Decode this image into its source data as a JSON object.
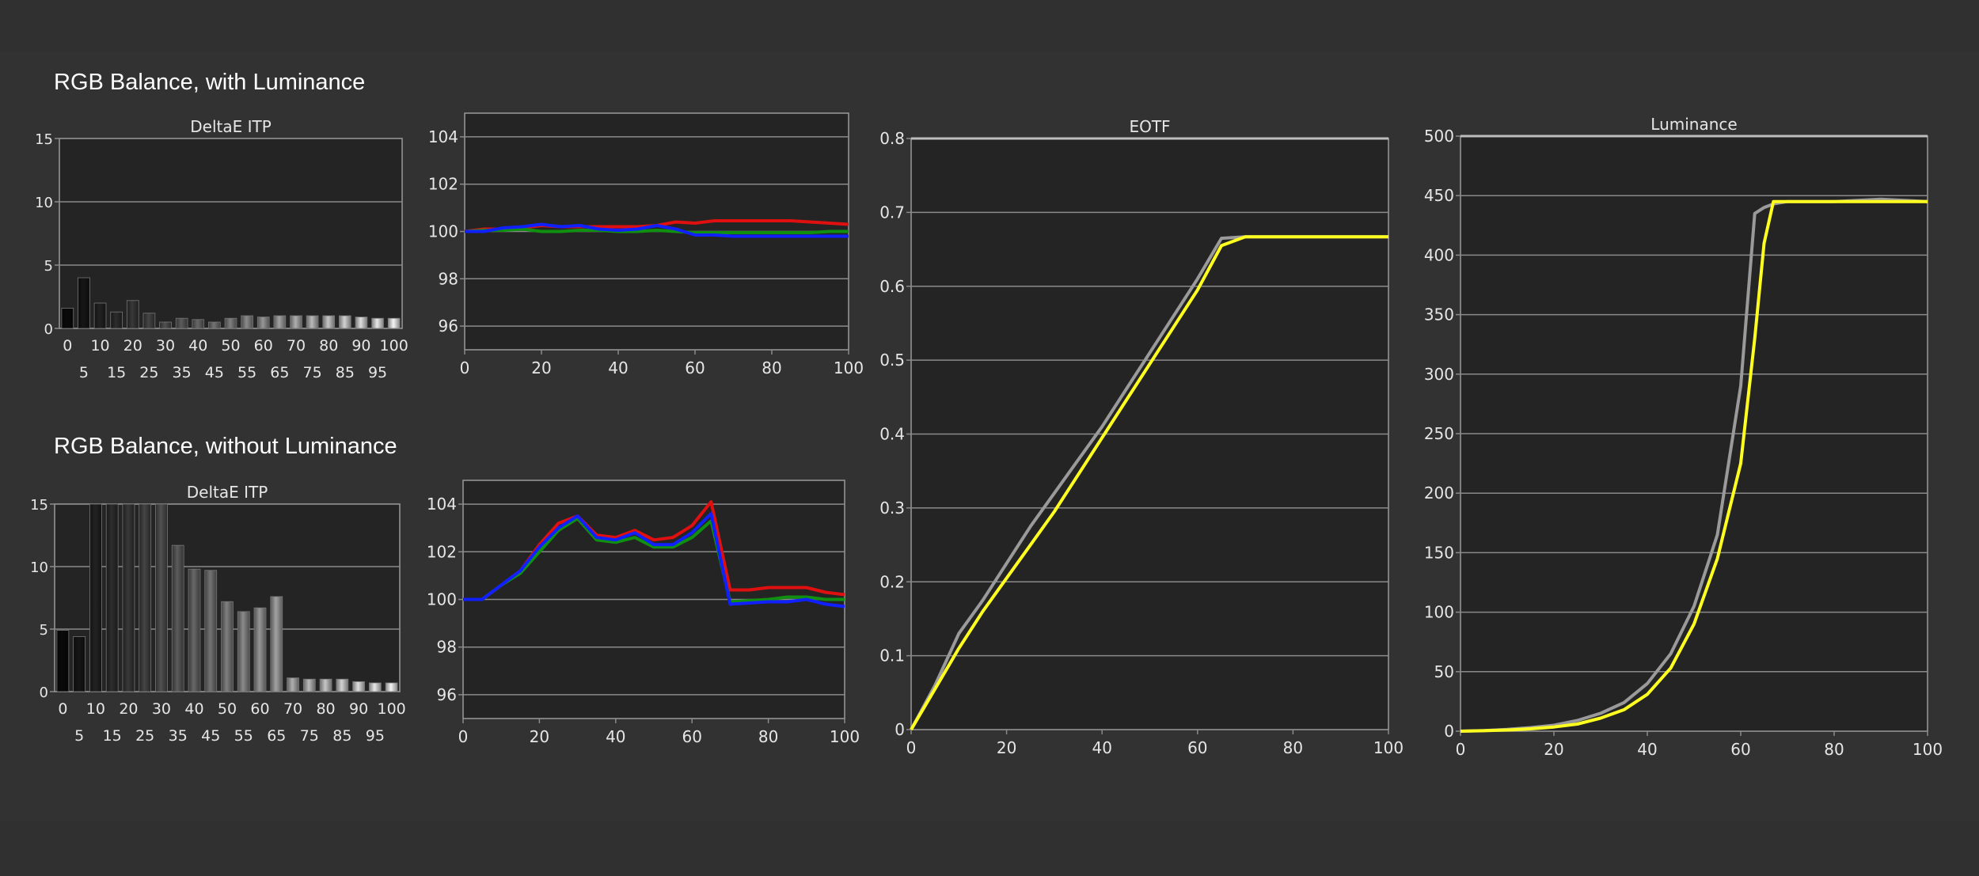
{
  "headings": {
    "top": "RGB Balance, with Luminance",
    "bottom": "RGB Balance, without Luminance"
  },
  "colors": {
    "background": "#303030",
    "plot_bg": "#242424",
    "grid": "#8a8a8a",
    "red": "#e01010",
    "green": "#109010",
    "blue": "#1020ff",
    "gray_target": "#9a9a9a",
    "yellow": "#ffff20"
  },
  "chart_data": [
    {
      "id": "deltae_top",
      "type": "bar",
      "title": "DeltaE ITP",
      "categories": [
        "0",
        "5",
        "10",
        "15",
        "20",
        "25",
        "30",
        "35",
        "40",
        "45",
        "50",
        "55",
        "60",
        "65",
        "70",
        "75",
        "80",
        "85",
        "90",
        "95",
        "100"
      ],
      "values": [
        1.6,
        4.0,
        2.0,
        1.3,
        2.2,
        1.2,
        0.5,
        0.8,
        0.7,
        0.5,
        0.8,
        1.0,
        0.9,
        1.0,
        1.0,
        1.0,
        1.0,
        1.0,
        0.9,
        0.8,
        0.8
      ],
      "ylim": [
        0,
        15
      ],
      "yticks": [
        0,
        5,
        10,
        15
      ],
      "xticks_row1": [
        "0",
        "10",
        "20",
        "30",
        "40",
        "50",
        "60",
        "70",
        "80",
        "90",
        "100"
      ],
      "xticks_row2": [
        "5",
        "15",
        "25",
        "35",
        "45",
        "55",
        "65",
        "75",
        "85",
        "95"
      ]
    },
    {
      "id": "rgb_top",
      "type": "line",
      "title": "",
      "x": [
        0,
        5,
        10,
        15,
        20,
        25,
        30,
        35,
        40,
        45,
        50,
        55,
        60,
        65,
        70,
        75,
        80,
        85,
        90,
        95,
        100
      ],
      "series": [
        {
          "color": "red",
          "values": [
            100,
            100.1,
            100.1,
            100.15,
            100.25,
            100.2,
            100.2,
            100.2,
            100.2,
            100.2,
            100.25,
            100.4,
            100.35,
            100.45,
            100.45,
            100.45,
            100.45,
            100.45,
            100.4,
            100.35,
            100.3
          ]
        },
        {
          "color": "green",
          "values": [
            100,
            100.05,
            100.05,
            100.1,
            100.0,
            100.0,
            100.05,
            100.05,
            100.0,
            100.0,
            100.05,
            100.0,
            99.95,
            99.95,
            99.95,
            99.95,
            99.95,
            99.95,
            99.95,
            100.0,
            100.0
          ]
        },
        {
          "color": "blue",
          "values": [
            100,
            100.0,
            100.15,
            100.2,
            100.3,
            100.2,
            100.25,
            100.1,
            100.05,
            100.1,
            100.25,
            100.1,
            99.85,
            99.85,
            99.8,
            99.8,
            99.8,
            99.8,
            99.8,
            99.8,
            99.8
          ]
        }
      ],
      "xlim": [
        0,
        100
      ],
      "ylim": [
        95,
        105
      ],
      "yticks": [
        96,
        98,
        100,
        102,
        104
      ],
      "xticks": [
        0,
        20,
        40,
        60,
        80,
        100
      ]
    },
    {
      "id": "deltae_bottom",
      "type": "bar",
      "title": "DeltaE ITP",
      "categories": [
        "0",
        "5",
        "10",
        "15",
        "20",
        "25",
        "30",
        "35",
        "40",
        "45",
        "50",
        "55",
        "60",
        "65",
        "70",
        "75",
        "80",
        "85",
        "90",
        "95",
        "100"
      ],
      "values": [
        4.9,
        4.4,
        15,
        15,
        15,
        15,
        15,
        11.7,
        9.8,
        9.7,
        7.2,
        6.4,
        6.7,
        7.6,
        1.1,
        1.0,
        1.0,
        1.0,
        0.8,
        0.7,
        0.7
      ],
      "ylim": [
        0,
        15
      ],
      "yticks": [
        0,
        5,
        10,
        15
      ],
      "xticks_row1": [
        "0",
        "10",
        "20",
        "30",
        "40",
        "50",
        "60",
        "70",
        "80",
        "90",
        "100"
      ],
      "xticks_row2": [
        "5",
        "15",
        "25",
        "35",
        "45",
        "55",
        "65",
        "75",
        "85",
        "95"
      ]
    },
    {
      "id": "rgb_bottom",
      "type": "line",
      "title": "",
      "x": [
        0,
        5,
        10,
        15,
        20,
        25,
        30,
        35,
        40,
        45,
        50,
        55,
        60,
        65,
        70,
        75,
        80,
        85,
        90,
        95,
        100
      ],
      "series": [
        {
          "color": "red",
          "values": [
            100,
            100,
            100.6,
            101.2,
            102.3,
            103.2,
            103.5,
            102.7,
            102.6,
            102.9,
            102.5,
            102.6,
            103.1,
            104.1,
            100.4,
            100.4,
            100.5,
            100.5,
            100.5,
            100.3,
            100.2
          ]
        },
        {
          "color": "green",
          "values": [
            100,
            100,
            100.6,
            101.1,
            102.0,
            102.9,
            103.4,
            102.5,
            102.4,
            102.6,
            102.2,
            102.2,
            102.6,
            103.3,
            99.9,
            99.95,
            100.0,
            100.1,
            100.1,
            100.0,
            100.0
          ]
        },
        {
          "color": "blue",
          "values": [
            100,
            100,
            100.6,
            101.2,
            102.2,
            103.0,
            103.5,
            102.6,
            102.5,
            102.8,
            102.3,
            102.3,
            102.8,
            103.6,
            99.8,
            99.85,
            99.9,
            99.9,
            100.0,
            99.8,
            99.7
          ]
        }
      ],
      "xlim": [
        0,
        100
      ],
      "ylim": [
        95,
        105
      ],
      "yticks": [
        96,
        98,
        100,
        102,
        104
      ],
      "xticks": [
        0,
        20,
        40,
        60,
        80,
        100
      ]
    },
    {
      "id": "eotf",
      "type": "line",
      "title": "EOTF",
      "x": [
        0,
        5,
        10,
        15,
        20,
        25,
        30,
        35,
        40,
        45,
        50,
        55,
        60,
        65,
        70,
        75,
        80,
        85,
        90,
        95,
        100
      ],
      "series": [
        {
          "color": "gray_target",
          "values": [
            0,
            0.06,
            0.13,
            0.175,
            0.225,
            0.275,
            0.32,
            0.365,
            0.41,
            0.46,
            0.51,
            0.56,
            0.61,
            0.665,
            0.667,
            0.667,
            0.667,
            0.667,
            0.667,
            0.667,
            0.667
          ]
        },
        {
          "color": "yellow",
          "values": [
            0,
            0.055,
            0.11,
            0.16,
            0.205,
            0.25,
            0.295,
            0.345,
            0.395,
            0.445,
            0.495,
            0.545,
            0.595,
            0.655,
            0.667,
            0.667,
            0.667,
            0.667,
            0.667,
            0.667,
            0.667
          ]
        }
      ],
      "xlim": [
        0,
        100
      ],
      "ylim": [
        0,
        0.8
      ],
      "yticks": [
        "0",
        "0.1",
        "0.2",
        "0.3",
        "0.4",
        "0.5",
        "0.6",
        "0.7",
        "0.8"
      ],
      "xticks": [
        0,
        20,
        40,
        60,
        80,
        100
      ]
    },
    {
      "id": "luminance",
      "type": "line",
      "title": "Luminance",
      "x": [
        0,
        5,
        10,
        15,
        20,
        25,
        30,
        35,
        40,
        45,
        50,
        55,
        60,
        63,
        65,
        67,
        70,
        75,
        80,
        85,
        90,
        95,
        100
      ],
      "series": [
        {
          "color": "gray_target",
          "values": [
            0,
            0.5,
            1.5,
            3,
            5,
            9,
            15,
            24,
            40,
            65,
            105,
            165,
            290,
            435,
            440,
            443,
            445,
            445,
            445,
            446,
            447,
            446,
            445
          ]
        },
        {
          "color": "yellow",
          "values": [
            0,
            0.4,
            1,
            2,
            3.5,
            6,
            11,
            18,
            31,
            53,
            90,
            145,
            225,
            330,
            410,
            445,
            445,
            445,
            445,
            445,
            445,
            445,
            445
          ]
        }
      ],
      "xlim": [
        0,
        100
      ],
      "ylim": [
        0,
        500
      ],
      "yticks": [
        0,
        50,
        100,
        150,
        200,
        250,
        300,
        350,
        400,
        450,
        500
      ],
      "xticks": [
        0,
        20,
        40,
        60,
        80,
        100
      ]
    }
  ]
}
